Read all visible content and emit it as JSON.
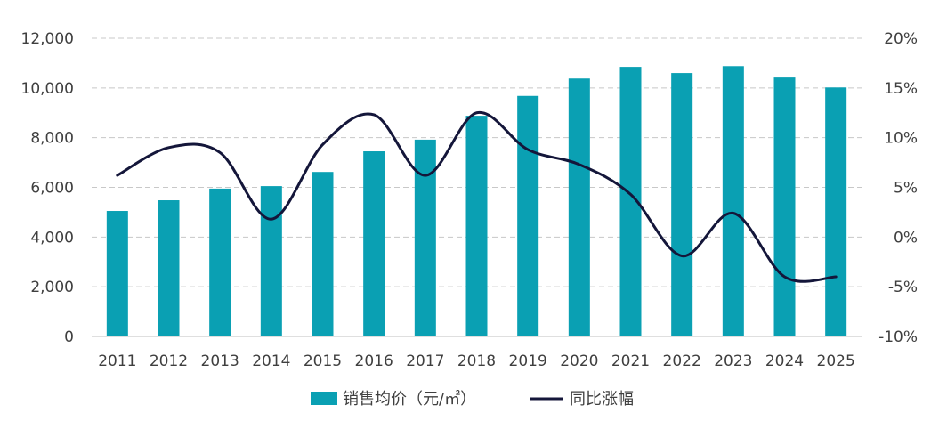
{
  "chart_data": {
    "type": "bar+line",
    "title": "",
    "categories": [
      "2011",
      "2012",
      "2013",
      "2014",
      "2015",
      "2016",
      "2017",
      "2018",
      "2019",
      "2020",
      "2021",
      "2022",
      "2023",
      "2024",
      "2025"
    ],
    "series": [
      {
        "name": "销售均价（元/㎡）",
        "type": "bar",
        "axis": "left",
        "color": "#0aa0b3",
        "values": [
          5050,
          5480,
          5950,
          6050,
          6620,
          7450,
          7920,
          8880,
          9680,
          10380,
          10850,
          10600,
          10880,
          10420,
          10020
        ]
      },
      {
        "name": "同比涨幅",
        "type": "line",
        "axis": "right",
        "color": "#14163a",
        "values": [
          6.2,
          9.0,
          8.5,
          1.8,
          9.3,
          12.3,
          6.2,
          12.5,
          8.8,
          7.3,
          4.3,
          -1.9,
          2.4,
          -4.0,
          -4.0
        ]
      }
    ],
    "left_axis": {
      "ylim": [
        0,
        12000
      ],
      "ticks": [
        0,
        2000,
        4000,
        6000,
        8000,
        10000,
        12000
      ],
      "tick_labels": [
        "0",
        "2,000",
        "4,000",
        "6,000",
        "8,000",
        "10,000",
        "12,000"
      ]
    },
    "right_axis": {
      "ylim": [
        -10,
        20
      ],
      "ticks": [
        -10,
        -5,
        0,
        5,
        10,
        15,
        20
      ],
      "tick_labels": [
        "-10%",
        "-5%",
        "0%",
        "5%",
        "10%",
        "15%",
        "20%"
      ]
    },
    "grid": true,
    "legend": {
      "position": "bottom",
      "entries": [
        "销售均价（元/㎡）",
        "同比涨幅"
      ]
    }
  }
}
